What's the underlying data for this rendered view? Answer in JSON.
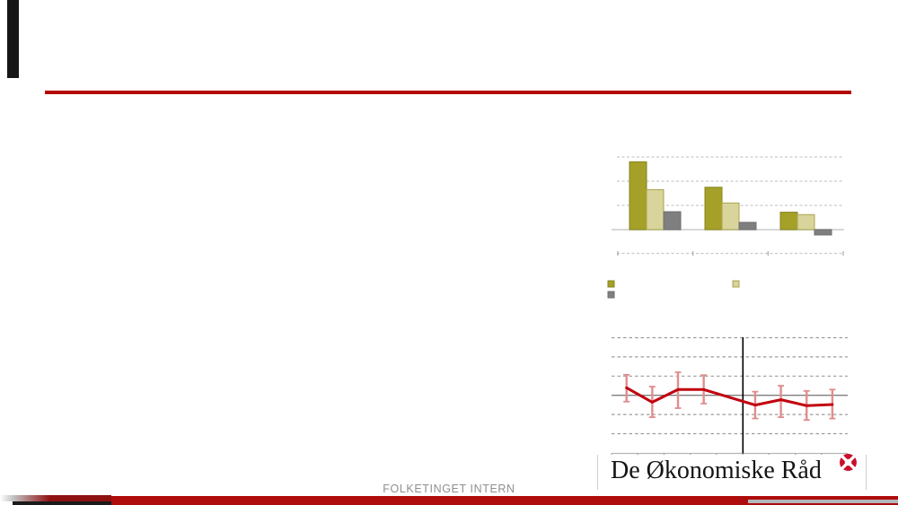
{
  "slide": {
    "footer_text": "FOLKETINGET INTERN",
    "logo_text": "De Økonomiske Råd"
  },
  "colors": {
    "accent_red": "#B40808",
    "footer_red": "#AF0C0C",
    "footer_maroon": "#8E1111",
    "footer_black": "#1A1A1A",
    "footer_gray": "#B4B8BA",
    "footer_text_gray": "#8F8F8F",
    "logo_icon_red": "#C8102E"
  },
  "chart_data": [
    {
      "type": "bar",
      "title": "",
      "categories": [
        "",
        "",
        ""
      ],
      "series": [
        {
          "name": "",
          "color": "#A5A028",
          "border": "#87851E",
          "values": [
            2.8,
            1.75,
            0.72
          ]
        },
        {
          "name": "",
          "color": "#D8D49B",
          "border": "#A9A54E",
          "values": [
            1.65,
            1.1,
            0.62
          ]
        },
        {
          "name": "",
          "color": "#7F7F7F",
          "border": "#6F6F6F",
          "values": [
            0.74,
            0.3,
            -0.22
          ]
        }
      ],
      "ylim": [
        -1,
        3.2
      ],
      "gridlines": [
        1,
        2,
        3
      ],
      "zero_line": true,
      "grid": true,
      "legend_position": "below-left",
      "axis_tick_labels_visible": false
    },
    {
      "type": "line",
      "title": "",
      "x": [
        1,
        2,
        3,
        4,
        5,
        6,
        7,
        8
      ],
      "y": [
        0.39,
        -0.36,
        0.3,
        0.3,
        -0.51,
        -0.23,
        -0.54,
        -0.48
      ],
      "err_high": [
        1.07,
        0.45,
        1.2,
        1.05,
        0.19,
        0.5,
        0.23,
        0.3
      ],
      "err_low": [
        -0.33,
        -1.14,
        -0.67,
        -0.43,
        -1.21,
        -1.14,
        -1.29,
        -1.21
      ],
      "divider_after_index": 3,
      "line_color": "#C1000E",
      "errorbar_color": "#E08D8D",
      "ylim": [
        -3,
        3
      ],
      "gridlines": [
        3,
        2,
        1,
        -1,
        -2
      ],
      "zero_line": true,
      "grid": true,
      "axis_tick_labels_visible": false
    }
  ]
}
